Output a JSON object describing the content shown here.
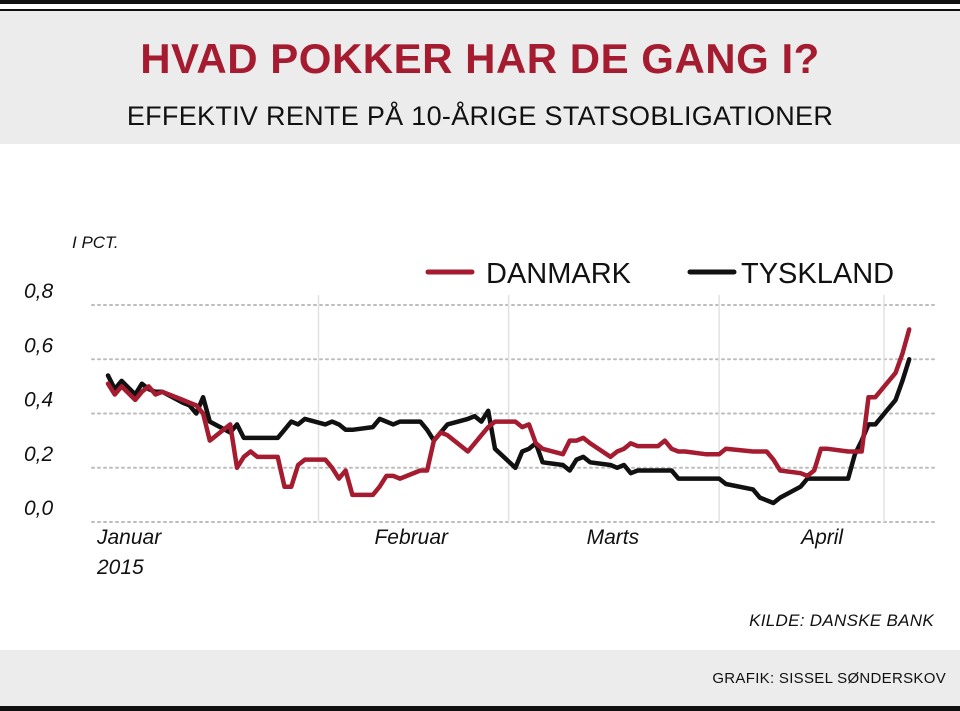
{
  "header": {
    "title": "HVAD POKKER HAR DE GANG I?",
    "subtitle": "EFFEKTIV RENTE PÅ 10-ÅRIGE STATSOBLIGATIONER"
  },
  "source": "KILDE: DANSKE BANK",
  "credit": "GRAFIK: SISSEL SØNDERSKOV",
  "colors": {
    "danmark": "#a51c30",
    "tyskland": "#111111",
    "title": "#a51c30"
  },
  "chart_data": {
    "type": "line",
    "ylabel": "I PCT.",
    "ylim": [
      0,
      0.8
    ],
    "yticks": [
      0.0,
      0.2,
      0.4,
      0.6,
      0.8
    ],
    "ytick_labels": [
      "0,0",
      "0,2",
      "0,4",
      "0,6",
      "0,8"
    ],
    "xlim": [
      "2015-01-01",
      "2015-04-30"
    ],
    "xtick_labels": [
      {
        "date": "2015-01-01",
        "label": "Januar",
        "sub": "2015"
      },
      {
        "date": "2015-02-01",
        "label": "Februar"
      },
      {
        "date": "2015-03-01",
        "label": "Marts"
      },
      {
        "date": "2015-04-01",
        "label": "April"
      }
    ],
    "grid": "horizontal-dotted",
    "legend_position": "top-right",
    "series": [
      {
        "name": "DANMARK",
        "x": [
          "2015-01-01",
          "2015-01-02",
          "2015-01-03",
          "2015-01-05",
          "2015-01-06",
          "2015-01-07",
          "2015-01-08",
          "2015-01-09",
          "2015-01-12",
          "2015-01-13",
          "2015-01-14",
          "2015-01-15",
          "2015-01-16",
          "2015-01-19",
          "2015-01-20",
          "2015-01-21",
          "2015-01-22",
          "2015-01-23",
          "2015-01-26",
          "2015-01-27",
          "2015-01-28",
          "2015-01-29",
          "2015-01-30",
          "2015-02-02",
          "2015-02-03",
          "2015-02-04",
          "2015-02-05",
          "2015-02-06",
          "2015-02-09",
          "2015-02-10",
          "2015-02-11",
          "2015-02-12",
          "2015-02-13",
          "2015-02-16",
          "2015-02-17",
          "2015-02-18",
          "2015-02-19",
          "2015-02-20",
          "2015-02-23",
          "2015-02-24",
          "2015-02-25",
          "2015-02-26",
          "2015-02-27",
          "2015-03-02",
          "2015-03-03",
          "2015-03-04",
          "2015-03-05",
          "2015-03-06",
          "2015-03-09",
          "2015-03-10",
          "2015-03-11",
          "2015-03-12",
          "2015-03-13",
          "2015-03-16",
          "2015-03-17",
          "2015-03-18",
          "2015-03-19",
          "2015-03-20",
          "2015-03-23",
          "2015-03-24",
          "2015-03-25",
          "2015-03-26",
          "2015-03-27",
          "2015-03-30",
          "2015-03-31",
          "2015-04-01",
          "2015-04-02",
          "2015-04-06",
          "2015-04-07",
          "2015-04-08",
          "2015-04-09",
          "2015-04-10",
          "2015-04-13",
          "2015-04-14",
          "2015-04-15",
          "2015-04-16",
          "2015-04-17",
          "2015-04-20",
          "2015-04-21",
          "2015-04-22",
          "2015-04-23",
          "2015-04-24",
          "2015-04-27",
          "2015-04-28",
          "2015-04-29"
        ],
        "values": [
          0.51,
          0.47,
          0.5,
          0.45,
          0.48,
          0.5,
          0.47,
          0.48,
          0.45,
          0.44,
          0.43,
          0.4,
          0.3,
          0.36,
          0.2,
          0.24,
          0.26,
          0.24,
          0.24,
          0.13,
          0.13,
          0.21,
          0.23,
          0.23,
          0.2,
          0.16,
          0.19,
          0.1,
          0.1,
          0.13,
          0.17,
          0.17,
          0.16,
          0.19,
          0.19,
          0.3,
          0.33,
          0.32,
          0.26,
          0.29,
          0.32,
          0.35,
          0.37,
          0.37,
          0.35,
          0.36,
          0.29,
          0.27,
          0.25,
          0.3,
          0.3,
          0.31,
          0.29,
          0.24,
          0.26,
          0.27,
          0.29,
          0.28,
          0.28,
          0.3,
          0.27,
          0.26,
          0.26,
          0.25,
          0.25,
          0.25,
          0.27,
          0.26,
          0.26,
          0.26,
          0.23,
          0.19,
          0.18,
          0.17,
          0.19,
          0.27,
          0.27,
          0.26,
          0.26,
          0.26,
          0.46,
          0.46,
          0.55,
          0.62,
          0.71
        ]
      },
      {
        "name": "TYSKLAND",
        "x": [
          "2015-01-01",
          "2015-01-02",
          "2015-01-03",
          "2015-01-05",
          "2015-01-06",
          "2015-01-07",
          "2015-01-08",
          "2015-01-09",
          "2015-01-12",
          "2015-01-13",
          "2015-01-14",
          "2015-01-15",
          "2015-01-16",
          "2015-01-19",
          "2015-01-20",
          "2015-01-21",
          "2015-01-22",
          "2015-01-23",
          "2015-01-26",
          "2015-01-27",
          "2015-01-28",
          "2015-01-29",
          "2015-01-30",
          "2015-02-02",
          "2015-02-03",
          "2015-02-04",
          "2015-02-05",
          "2015-02-06",
          "2015-02-09",
          "2015-02-10",
          "2015-02-11",
          "2015-02-12",
          "2015-02-13",
          "2015-02-16",
          "2015-02-17",
          "2015-02-18",
          "2015-02-19",
          "2015-02-20",
          "2015-02-23",
          "2015-02-24",
          "2015-02-25",
          "2015-02-26",
          "2015-02-27",
          "2015-03-02",
          "2015-03-03",
          "2015-03-04",
          "2015-03-05",
          "2015-03-06",
          "2015-03-09",
          "2015-03-10",
          "2015-03-11",
          "2015-03-12",
          "2015-03-13",
          "2015-03-16",
          "2015-03-17",
          "2015-03-18",
          "2015-03-19",
          "2015-03-20",
          "2015-03-23",
          "2015-03-24",
          "2015-03-25",
          "2015-03-26",
          "2015-03-27",
          "2015-03-30",
          "2015-03-31",
          "2015-04-01",
          "2015-04-02",
          "2015-04-06",
          "2015-04-07",
          "2015-04-08",
          "2015-04-09",
          "2015-04-10",
          "2015-04-13",
          "2015-04-14",
          "2015-04-15",
          "2015-04-16",
          "2015-04-17",
          "2015-04-20",
          "2015-04-21",
          "2015-04-22",
          "2015-04-23",
          "2015-04-24",
          "2015-04-27",
          "2015-04-28",
          "2015-04-29"
        ],
        "values": [
          0.54,
          0.49,
          0.52,
          0.47,
          0.51,
          0.49,
          0.48,
          0.48,
          0.44,
          0.43,
          0.4,
          0.46,
          0.37,
          0.33,
          0.36,
          0.31,
          0.31,
          0.31,
          0.31,
          0.34,
          0.37,
          0.36,
          0.38,
          0.36,
          0.37,
          0.36,
          0.34,
          0.34,
          0.35,
          0.38,
          0.37,
          0.36,
          0.37,
          0.37,
          0.34,
          0.3,
          0.33,
          0.36,
          0.38,
          0.39,
          0.37,
          0.41,
          0.27,
          0.2,
          0.26,
          0.27,
          0.29,
          0.22,
          0.21,
          0.19,
          0.23,
          0.24,
          0.22,
          0.21,
          0.2,
          0.21,
          0.18,
          0.19,
          0.19,
          0.19,
          0.19,
          0.16,
          0.16,
          0.16,
          0.16,
          0.16,
          0.14,
          0.12,
          0.09,
          0.08,
          0.07,
          0.09,
          0.13,
          0.16,
          0.16,
          0.16,
          0.16,
          0.16,
          0.25,
          0.3,
          0.36,
          0.36,
          0.45,
          0.52,
          0.6
        ]
      }
    ]
  }
}
